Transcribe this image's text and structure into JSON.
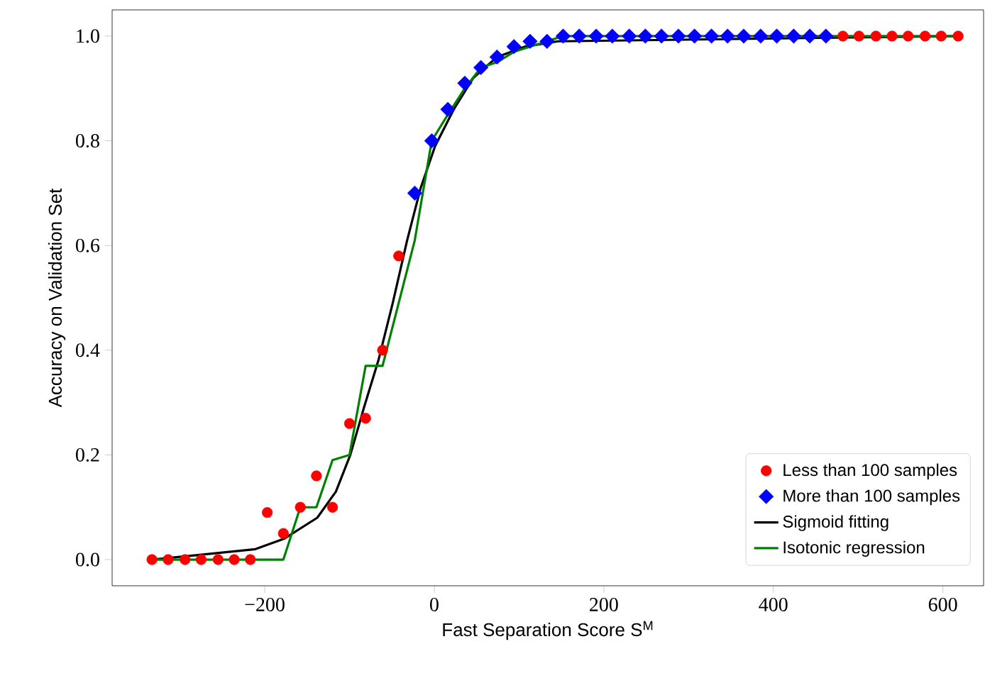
{
  "chart_data": {
    "type": "scatter",
    "xlabel": "Fast Separation Score S$^{M}$",
    "ylabel": "Accuracy on Validation Set",
    "xlim": [
      -380,
      648
    ],
    "ylim": [
      -0.05,
      1.05
    ],
    "xticks": [
      {
        "value": -200,
        "label": "−200"
      },
      0,
      200,
      400,
      600
    ],
    "yticks": [
      {
        "value": 0,
        "label": "0.0"
      },
      {
        "value": 0.2,
        "label": "0.2"
      },
      {
        "value": 0.4,
        "label": "0.4"
      },
      {
        "value": 0.6,
        "label": "0.6"
      },
      {
        "value": 0.8,
        "label": "0.8"
      },
      {
        "value": 1,
        "label": "1.0"
      }
    ],
    "legend": "bottom right",
    "series": [
      {
        "name": "Less than 100 samples",
        "marker": "circle",
        "color": "#ff0000",
        "x": [
          -333,
          -314,
          -294,
          -275,
          -255,
          -236,
          -217,
          -197,
          -178,
          -158,
          -139,
          -120,
          -100,
          -81,
          -61,
          -42,
          482,
          501,
          521,
          540,
          559,
          579,
          598,
          618
        ],
        "values": [
          0,
          0,
          0,
          0,
          0,
          0,
          0,
          0.09,
          0.05,
          0.1,
          0.16,
          0.1,
          0.26,
          0.27,
          0.4,
          0.58,
          1,
          1,
          1,
          1,
          1,
          1,
          1,
          1
        ]
      },
      {
        "name": "More than 100 samples",
        "marker": "diamond",
        "color": "#0000ff",
        "x": [
          -23,
          -3,
          16,
          36,
          55,
          74,
          94,
          113,
          133,
          152,
          171,
          191,
          210,
          230,
          249,
          268,
          288,
          307,
          327,
          346,
          365,
          385,
          404,
          424,
          443,
          462
        ],
        "values": [
          0.7,
          0.8,
          0.86,
          0.91,
          0.94,
          0.96,
          0.98,
          0.99,
          0.99,
          1,
          1,
          1,
          1,
          1,
          1,
          1,
          1,
          1,
          1,
          1,
          1,
          1,
          1,
          1,
          1,
          1
        ]
      },
      {
        "name": "Sigmoid fitting",
        "type": "line",
        "marker": "none",
        "line_style": "solid",
        "color": "#000000",
        "x": [
          -333,
          -211,
          -177,
          -138,
          -116,
          -99,
          -83,
          -66,
          -49,
          -32,
          -16,
          1,
          23,
          46,
          74,
          107,
          146,
          618
        ],
        "values": [
          0,
          0.02,
          0.04,
          0.08,
          0.13,
          0.2,
          0.29,
          0.38,
          0.49,
          0.61,
          0.71,
          0.79,
          0.86,
          0.92,
          0.96,
          0.98,
          0.99,
          1
        ]
      },
      {
        "name": "Isotonic regression",
        "type": "line",
        "marker": "none",
        "line_style": "solid",
        "color": "#008000",
        "x": [
          -333,
          -178,
          -158,
          -139,
          -120,
          -100,
          -81,
          -61,
          -23,
          -3,
          16,
          36,
          55,
          74,
          94,
          113,
          133,
          152,
          618
        ],
        "values": [
          0,
          0,
          0.1,
          0.1,
          0.19,
          0.2,
          0.37,
          0.37,
          0.61,
          0.8,
          0.85,
          0.9,
          0.94,
          0.95,
          0.97,
          0.98,
          0.99,
          1,
          1
        ]
      }
    ]
  }
}
